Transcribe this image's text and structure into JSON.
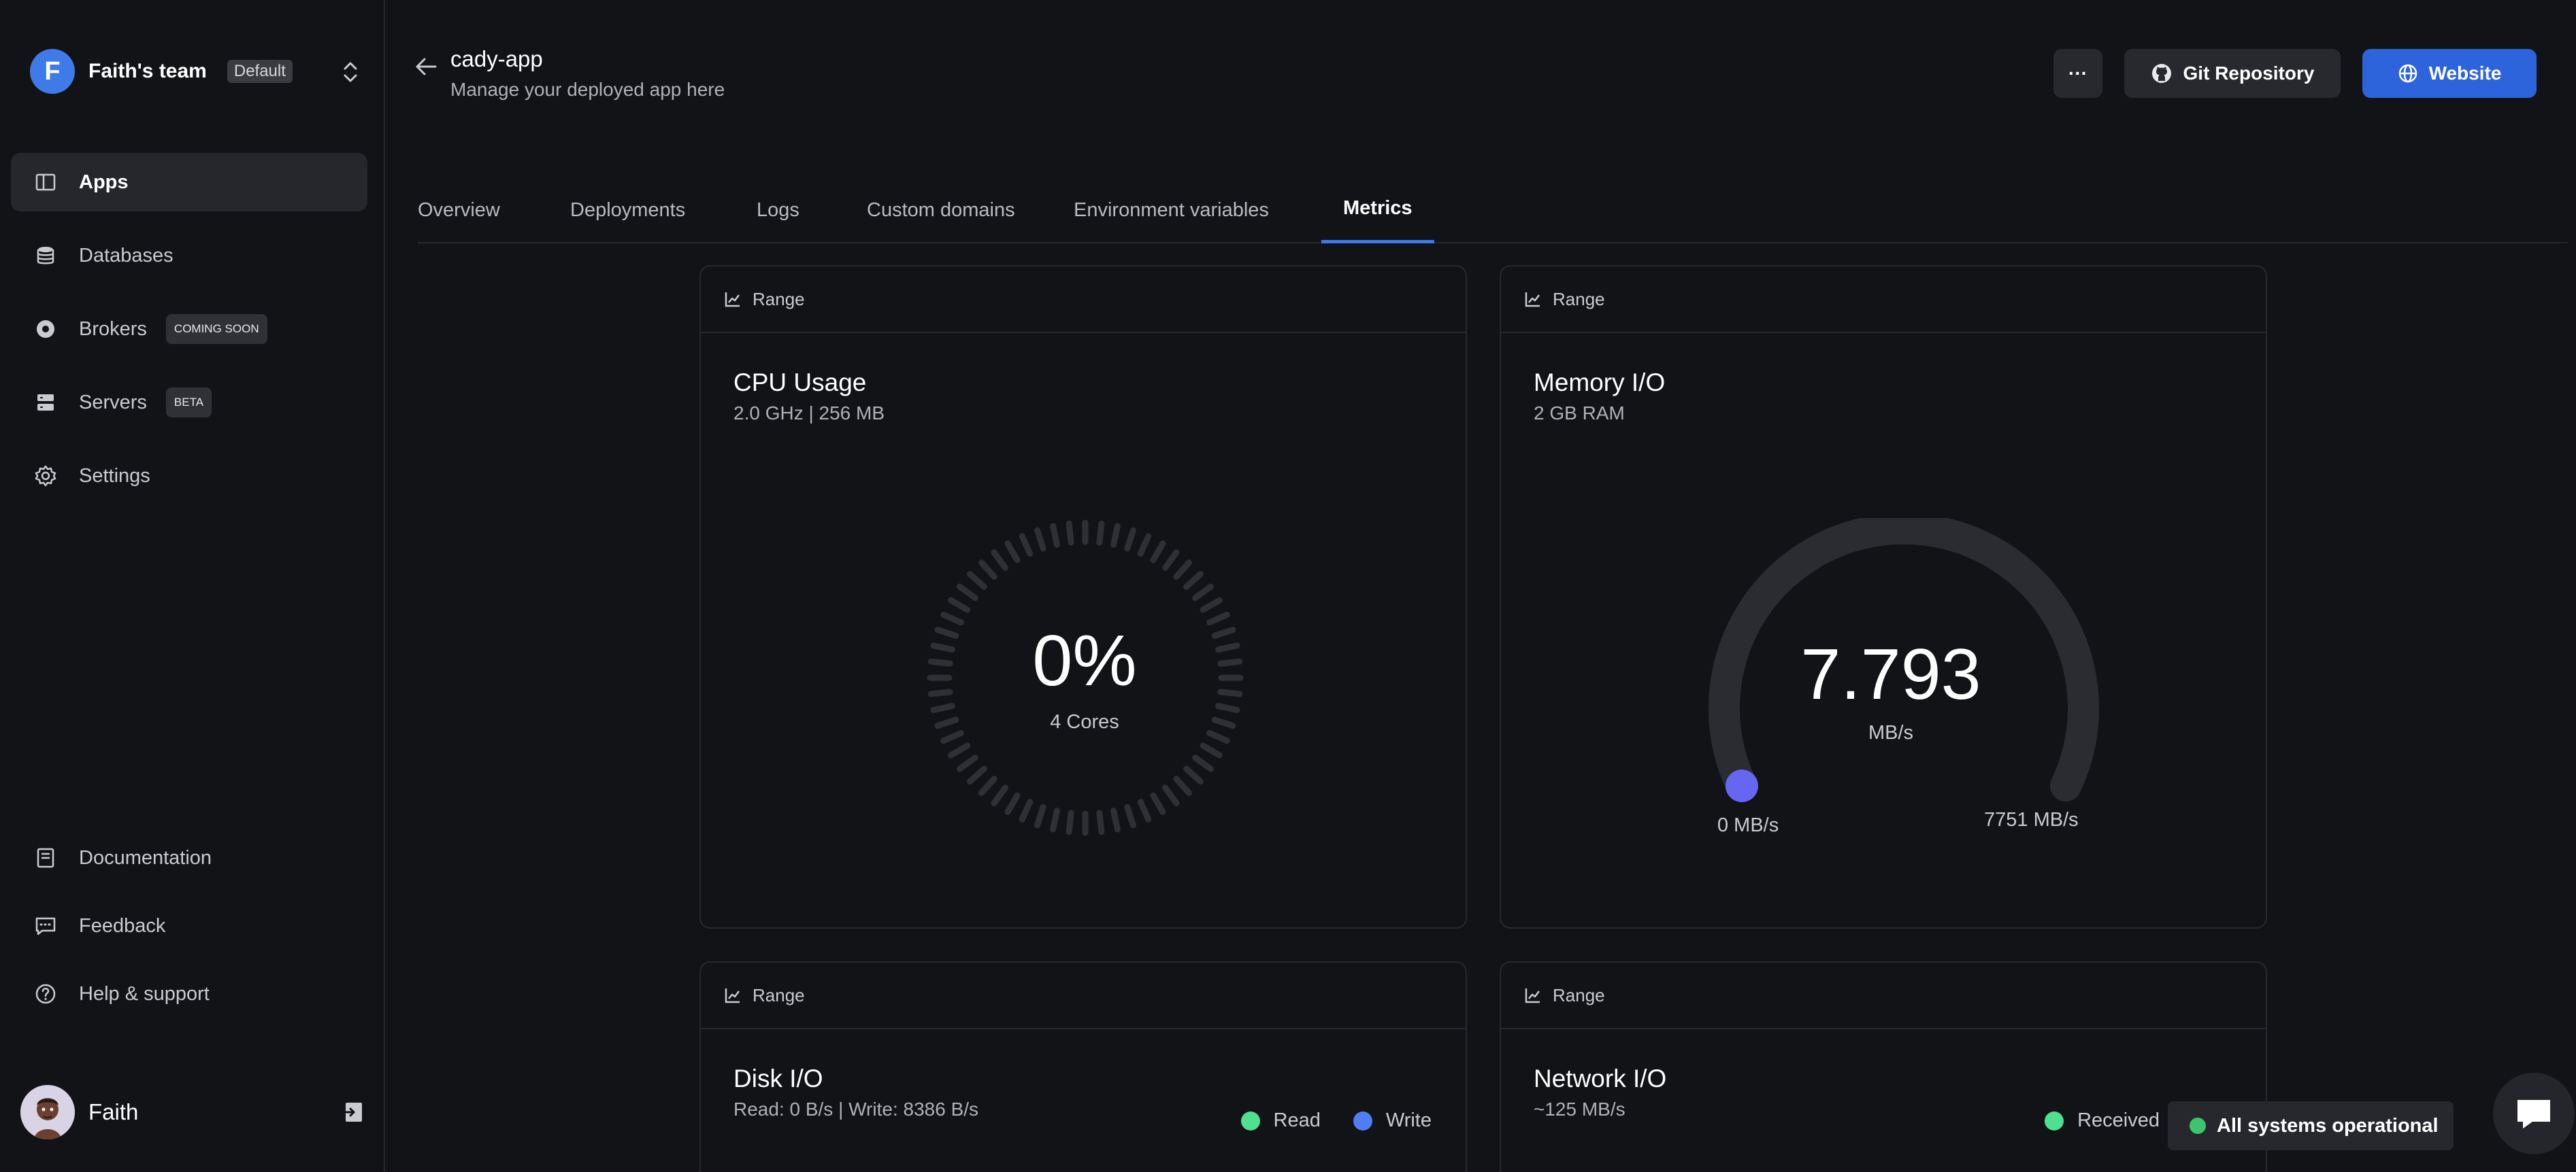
{
  "sidebar": {
    "team": {
      "initial": "F",
      "name": "Faith's team",
      "badge": "Default"
    },
    "items": [
      {
        "label": "Apps",
        "icon": "apps-icon",
        "active": true
      },
      {
        "label": "Databases",
        "icon": "database-icon"
      },
      {
        "label": "Brokers",
        "icon": "broker-icon",
        "badge": "COMING SOON"
      },
      {
        "label": "Servers",
        "icon": "server-icon",
        "badge": "BETA"
      },
      {
        "label": "Settings",
        "icon": "gear-icon"
      }
    ],
    "bottom_items": [
      {
        "label": "Documentation",
        "icon": "book-icon"
      },
      {
        "label": "Feedback",
        "icon": "chat-icon"
      },
      {
        "label": "Help & support",
        "icon": "help-icon"
      }
    ],
    "profile": {
      "name": "Faith"
    }
  },
  "header": {
    "title": "cady-app",
    "subtitle": "Manage your deployed app here",
    "buttons": {
      "more": "···",
      "git": "Git Repository",
      "website": "Website"
    }
  },
  "tabs": [
    "Overview",
    "Deployments",
    "Logs",
    "Custom domains",
    "Environment variables",
    "Metrics"
  ],
  "active_tab": "Metrics",
  "cards": {
    "cpu": {
      "range": "Range",
      "title": "CPU Usage",
      "sub": "2.0 GHz | 256 MB",
      "value": "0%",
      "cores": "4 Cores",
      "percent": 0
    },
    "memory": {
      "range": "Range",
      "title": "Memory I/O",
      "sub": "2 GB RAM",
      "value": "7.793",
      "unit": "MB/s",
      "min": "0 MB/s",
      "max": "7751 MB/s"
    },
    "disk": {
      "range": "Range",
      "title": "Disk I/O",
      "sub": "Read: 0 B/s | Write: 8386 B/s",
      "legend": [
        "Read",
        "Write"
      ]
    },
    "network": {
      "range": "Range",
      "title": "Network I/O",
      "sub": "~125 MB/s",
      "legend": [
        "Received"
      ]
    }
  },
  "status": "All systems operational",
  "colors": {
    "accent": "#2d64dc",
    "read": "#4ee08e",
    "write": "#4f7ef0",
    "gauge_knob": "#6666f2",
    "status": "#3ec46d"
  }
}
